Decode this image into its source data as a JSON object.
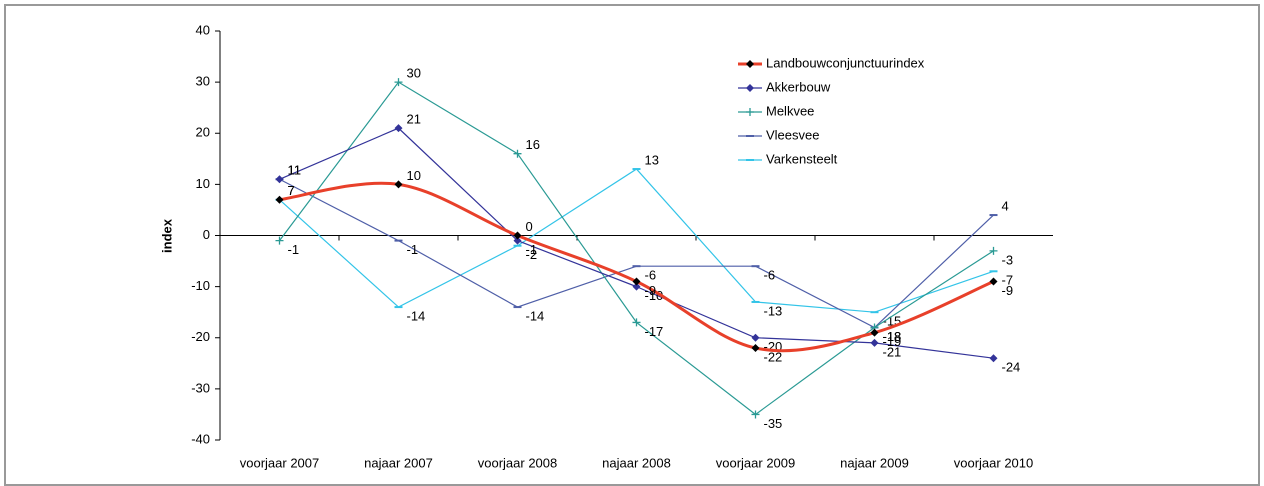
{
  "chart_data": {
    "type": "line",
    "y_label": "index",
    "categories": [
      "voorjaar 2007",
      "najaar 2007",
      "voorjaar 2008",
      "najaar 2008",
      "voorjaar 2009",
      "najaar 2009",
      "voorjaar 2010"
    ],
    "ylim": [
      -40,
      40
    ],
    "yticks": [
      -40,
      -30,
      -20,
      -10,
      0,
      10,
      20,
      30,
      40
    ],
    "legend": "top-right",
    "series": [
      {
        "name": "Landbouwconjunctuurindex",
        "color": "#e8402a",
        "marker": "diamond",
        "marker_color": "#000000",
        "smooth": true,
        "values": [
          7,
          10,
          0,
          -9,
          -22,
          -19,
          -9
        ]
      },
      {
        "name": "Akkerbouw",
        "color": "#333399",
        "marker": "diamond",
        "marker_color": "#333399",
        "smooth": false,
        "values": [
          11,
          21,
          -1,
          -10,
          -20,
          -21,
          -24
        ]
      },
      {
        "name": "Melkvee",
        "color": "#2a9a94",
        "marker": "plus",
        "marker_color": "#2a9a94",
        "smooth": false,
        "values": [
          -1,
          30,
          16,
          -17,
          -35,
          -18,
          -3
        ]
      },
      {
        "name": "Vleesvee",
        "color": "#4f5fa8",
        "marker": "dash",
        "marker_color": "#4f5fa8",
        "smooth": false,
        "values": [
          11,
          -1,
          -14,
          -6,
          -6,
          -18,
          4
        ]
      },
      {
        "name": "Varkensteelt",
        "color": "#33c4e8",
        "marker": "dash",
        "marker_color": "#33c4e8",
        "smooth": false,
        "values": [
          7,
          -14,
          -2,
          13,
          -13,
          -15,
          -7
        ]
      }
    ]
  }
}
